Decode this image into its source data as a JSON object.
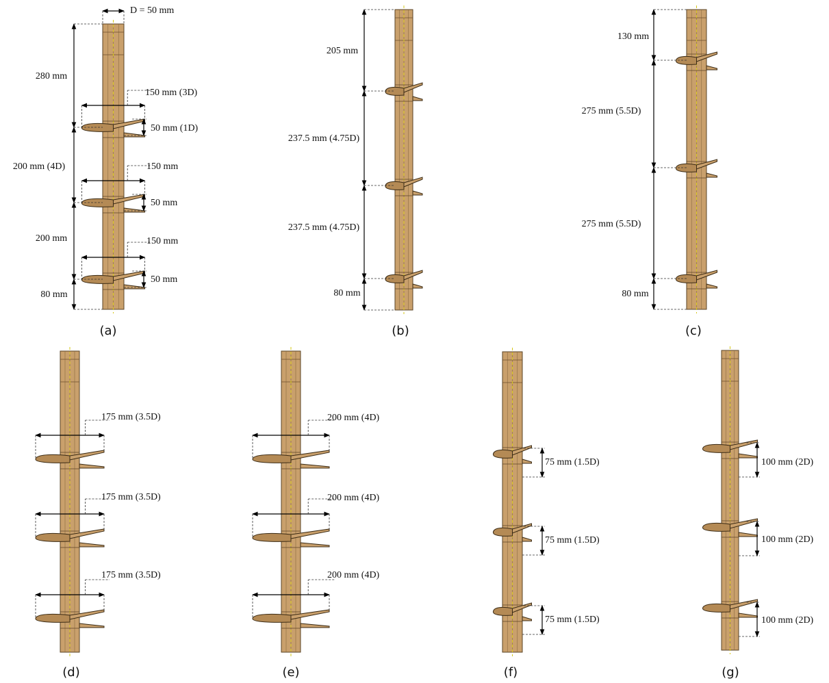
{
  "panels": [
    {
      "label": "(a)",
      "annotations": [
        "D = 50 mm",
        "280 mm",
        "150 mm (3D)",
        "50 mm (1D)",
        "200 mm (4D)",
        "150 mm",
        "50 mm",
        "200 mm",
        "150 mm",
        "50 mm",
        "80 mm"
      ]
    },
    {
      "label": "(b)",
      "annotations": [
        "205 mm",
        "237.5 mm (4.75D)",
        "237.5 mm (4.75D)",
        "80 mm"
      ]
    },
    {
      "label": "(c)",
      "annotations": [
        "130 mm",
        "275 mm (5.5D)",
        "275 mm (5.5D)",
        "80 mm"
      ]
    },
    {
      "label": "(d)",
      "annotations": [
        "175 mm (3.5D)",
        "175 mm (3.5D)",
        "175 mm (3.5D)"
      ]
    },
    {
      "label": "(e)",
      "annotations": [
        "200 mm (4D)",
        "200 mm (4D)",
        "200 mm (4D)"
      ]
    },
    {
      "label": "(f)",
      "annotations": [
        "75 mm (1.5D)",
        "75 mm (1.5D)",
        "75 mm (1.5D)"
      ]
    },
    {
      "label": "(g)",
      "annotations": [
        "100 mm (2D)",
        "100 mm (2D)",
        "100 mm (2D)"
      ]
    }
  ]
}
